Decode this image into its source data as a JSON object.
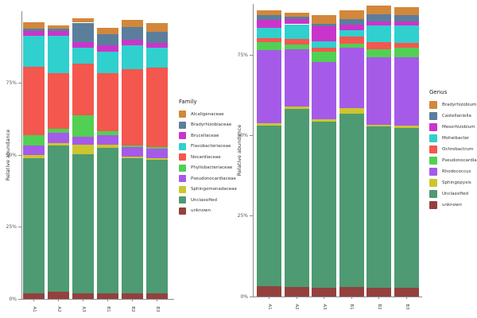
{
  "figure": {
    "background": "#ffffff",
    "axis_color": "#8c8c8c",
    "tick_text_color": "#555555"
  },
  "chart_data": [
    {
      "type": "bar",
      "subtype": "stacked-percent",
      "title": "",
      "xlabel": "",
      "ylabel": "Relative abundance",
      "legend_title": "Family",
      "legend_position": "right",
      "grid": false,
      "categories": [
        "A1",
        "A2",
        "A3",
        "B1",
        "B2",
        "B3"
      ],
      "y_ticks": [
        "0%",
        "25%",
        "50%",
        "75%"
      ],
      "ylim": [
        0,
        100
      ],
      "stack_order": "reverse-of-series (unknown at bottom, Alcaligenaceae at top)",
      "series": [
        {
          "name": "Alcaligenaceae",
          "color": "#D2873B",
          "values": [
            2.3,
            1.3,
            1.4,
            2.3,
            2.3,
            3.2
          ]
        },
        {
          "name": "Bradyrhizobiaceae",
          "color": "#5B7E9D",
          "values": [
            0.7,
            0.6,
            6.9,
            3.7,
            4.6,
            3.7
          ]
        },
        {
          "name": "Brucellaceae",
          "color": "#CB34CB",
          "values": [
            1.8,
            1.8,
            1.8,
            2.3,
            1.8,
            1.8
          ]
        },
        {
          "name": "Flavobacteriaceae",
          "color": "#2FD0CE",
          "values": [
            10.6,
            12.9,
            5.5,
            7.4,
            8.3,
            6.9
          ]
        },
        {
          "name": "Nocardiaceae",
          "color": "#F4574E",
          "values": [
            23.9,
            19.3,
            18.0,
            20.2,
            26.7,
            27.4
          ]
        },
        {
          "name": "Phyllobacteriaceae",
          "color": "#52D053",
          "values": [
            3.7,
            1.4,
            7.4,
            1.4,
            0.5,
            0.7
          ]
        },
        {
          "name": "Pseudonocardiaceae",
          "color": "#A55BE8",
          "values": [
            3.2,
            3.7,
            2.9,
            3.2,
            3.2,
            3.2
          ]
        },
        {
          "name": "Sphingomonadaceae",
          "color": "#CCC62E",
          "values": [
            1.1,
            0.8,
            3.3,
            1.1,
            0.6,
            0.7
          ]
        },
        {
          "name": "Unclassified",
          "color": "#4E9A72",
          "values": [
            46.9,
            50.8,
            48.2,
            50.6,
            46.9,
            46.3
          ]
        },
        {
          "name": "unknown",
          "color": "#94403E",
          "values": [
            2.0,
            2.5,
            2.0,
            2.0,
            2.0,
            2.0
          ]
        }
      ]
    },
    {
      "type": "bar",
      "subtype": "stacked-percent",
      "title": "",
      "xlabel": "",
      "ylabel": "Relative abundance",
      "legend_title": "Genus",
      "legend_position": "right",
      "grid": false,
      "categories": [
        "A1",
        "A2",
        "A3",
        "B1",
        "B2",
        "B3"
      ],
      "y_ticks": [
        "0%",
        "25%",
        "50%",
        "75%"
      ],
      "ylim": [
        0,
        91
      ],
      "stack_order": "reverse-of-series (unknown at bottom, Bradyrhizobium at top)",
      "series": [
        {
          "name": "Bradyrhizobium",
          "color": "#D2873B",
          "values": [
            1.4,
            1.4,
            2.6,
            2.9,
            2.9,
            2.5
          ]
        },
        {
          "name": "Castellaniella",
          "color": "#5B7E9D",
          "values": [
            1.5,
            0.8,
            0.8,
            1.7,
            2.1,
            2.1
          ]
        },
        {
          "name": "Mesorhizobium",
          "color": "#CB34CB",
          "values": [
            2.5,
            1.5,
            4.6,
            1.6,
            1.2,
            1.2
          ]
        },
        {
          "name": "Moheibacter",
          "color": "#2FD0CE",
          "values": [
            3.3,
            4.5,
            2.1,
            2.1,
            5.3,
            5.4
          ]
        },
        {
          "name": "Ochrobactrum",
          "color": "#F4574E",
          "values": [
            1.2,
            1.9,
            1.2,
            2.1,
            2.1,
            1.6
          ]
        },
        {
          "name": "Pseudonocardia",
          "color": "#52D053",
          "values": [
            2.5,
            1.4,
            3.3,
            1.2,
            2.5,
            2.9
          ]
        },
        {
          "name": "Rhodococcus",
          "color": "#A55BE8",
          "values": [
            22.7,
            17.8,
            17.7,
            18.8,
            21.0,
            21.3
          ]
        },
        {
          "name": "Sphingopyxis",
          "color": "#CCC62E",
          "values": [
            0.8,
            0.7,
            0.9,
            1.7,
            0.6,
            0.6
          ]
        },
        {
          "name": "Unclassified",
          "color": "#4E9A72",
          "values": [
            49.9,
            55.4,
            51.6,
            54.0,
            50.2,
            49.8
          ]
        },
        {
          "name": "unknown",
          "color": "#94403E",
          "values": [
            3.2,
            3.0,
            2.7,
            3.0,
            2.7,
            2.7
          ]
        }
      ]
    }
  ]
}
